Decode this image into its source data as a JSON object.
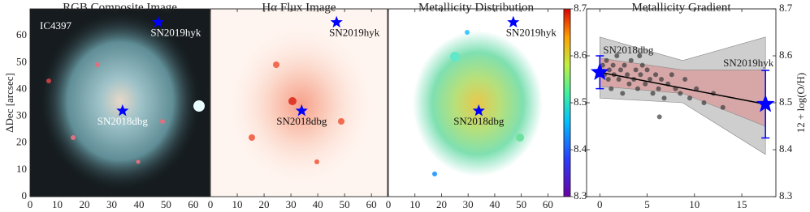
{
  "chart_data": [
    {
      "type": "image",
      "title": "RGB Composite Image",
      "ylabel": "ΔDec [arcsec]",
      "annotation": "IC4397",
      "xlim": [
        0,
        66
      ],
      "ylim": [
        0,
        70
      ],
      "xticks": [
        0,
        10,
        20,
        30,
        40,
        50,
        60
      ],
      "yticks": [
        0,
        10,
        20,
        30,
        40,
        50,
        60
      ],
      "marker_color": "#0000ff",
      "label_color": "#ffffff",
      "markers": [
        {
          "name": "SN2019hyk",
          "x": 47,
          "y": 65
        },
        {
          "name": "SN2018dbg",
          "x": 34,
          "y": 32
        }
      ]
    },
    {
      "type": "image",
      "title": "Hα Flux Image",
      "xlim": [
        0,
        66
      ],
      "ylim": [
        0,
        70
      ],
      "xticks": [
        0,
        10,
        20,
        30,
        40,
        50,
        60
      ],
      "marker_color": "#0000ff",
      "label_color": "#111111",
      "markers": [
        {
          "name": "SN2019hyk",
          "x": 47,
          "y": 65
        },
        {
          "name": "SN2018dbg",
          "x": 34,
          "y": 32
        }
      ]
    },
    {
      "type": "image",
      "title": "Metallicity Distribution",
      "xlim": [
        0,
        66
      ],
      "ylim": [
        0,
        70
      ],
      "xticks": [
        0,
        10,
        20,
        30,
        40,
        50,
        60
      ],
      "marker_color": "#0000ff",
      "label_color": "#111111",
      "markers": [
        {
          "name": "SN2019hyk",
          "x": 47,
          "y": 65
        },
        {
          "name": "SN2018dbg",
          "x": 34,
          "y": 32
        }
      ],
      "colorbar": {
        "lim": [
          8.3,
          8.7
        ],
        "ticks": [
          8.3,
          8.4,
          8.5,
          8.6,
          8.7
        ]
      }
    },
    {
      "type": "scatter",
      "title": "Metallicity Gradient",
      "ylabel": "12 + log(O/H)",
      "xlim": [
        -1.4,
        18.6
      ],
      "ylim": [
        8.3,
        8.7
      ],
      "xticks": [
        0,
        5,
        10,
        15
      ],
      "yticks": [
        8.3,
        8.4,
        8.5,
        8.6,
        8.7
      ],
      "bands": [
        {
          "color": "#bdbdbd",
          "x": [
            0,
            8.75,
            17.5
          ],
          "lower": [
            8.51,
            8.5,
            8.39
          ],
          "upper": [
            8.64,
            8.59,
            8.64
          ]
        },
        {
          "color": "#d99a9a",
          "x": [
            0,
            8.75,
            17.5
          ],
          "lower": [
            8.535,
            8.52,
            8.45
          ],
          "upper": [
            8.595,
            8.57,
            8.57
          ]
        }
      ],
      "points": {
        "color": "#3a3a3a",
        "x": [
          0.3,
          0.5,
          0.7,
          0.9,
          1.0,
          1.2,
          1.4,
          1.5,
          1.8,
          2.0,
          2.2,
          2.4,
          2.6,
          2.9,
          3.1,
          3.3,
          3.6,
          3.8,
          4.0,
          4.3,
          4.5,
          4.8,
          5.0,
          5.3,
          5.6,
          5.9,
          6.2,
          6.5,
          6.8,
          7.2,
          7.6,
          8.0,
          8.5,
          9.0,
          9.5,
          10.2,
          11.0,
          12.0,
          13.0,
          4.2,
          6.3
        ],
        "y": [
          8.58,
          8.56,
          8.59,
          8.55,
          8.57,
          8.53,
          8.58,
          8.56,
          8.6,
          8.55,
          8.57,
          8.52,
          8.58,
          8.56,
          8.54,
          8.59,
          8.55,
          8.57,
          8.53,
          8.56,
          8.58,
          8.54,
          8.57,
          8.55,
          8.52,
          8.56,
          8.53,
          8.55,
          8.51,
          8.54,
          8.56,
          8.53,
          8.52,
          8.55,
          8.51,
          8.53,
          8.5,
          8.52,
          8.49,
          8.6,
          8.47
        ]
      },
      "fit": {
        "color": "#000000",
        "x": [
          0,
          17.5
        ],
        "y": [
          8.565,
          8.497
        ]
      },
      "supernovae": [
        {
          "name": "SN2018dbg",
          "x": 0,
          "y": 8.565,
          "error": 0.035,
          "color": "#0000ff"
        },
        {
          "name": "SN2019hyk",
          "x": 17.5,
          "y": 8.497,
          "error": 0.072,
          "color": "#0000ff"
        }
      ]
    }
  ]
}
